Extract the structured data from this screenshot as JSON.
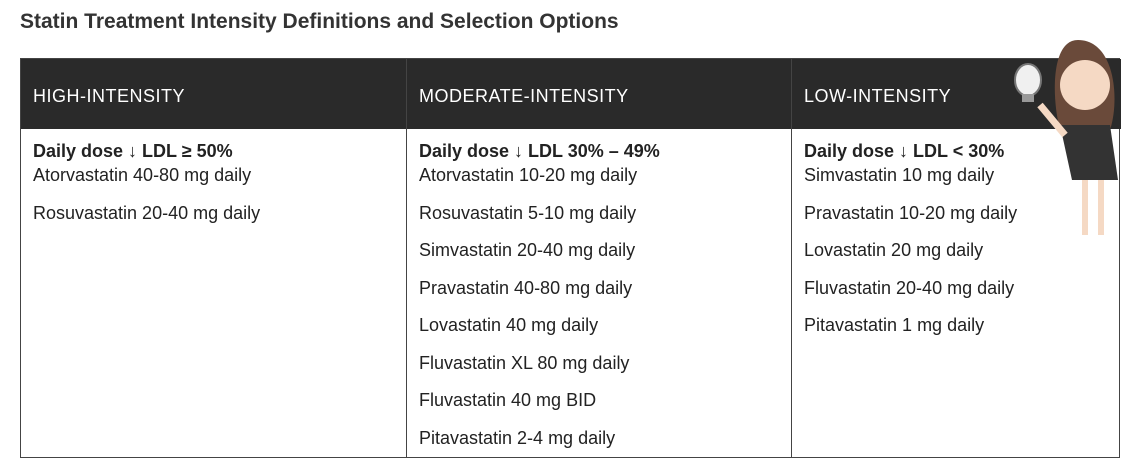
{
  "title": "Statin Treatment Intensity Definitions and Selection Options",
  "table": {
    "columns": [
      {
        "header": "HIGH-INTENSITY",
        "subheader": "Daily dose ↓ LDL ≥ 50%",
        "items": [
          "Atorvastatin 40-80 mg daily",
          "Rosuvastatin 20-40 mg daily"
        ]
      },
      {
        "header": "MODERATE-INTENSITY",
        "subheader": "Daily dose ↓ LDL 30% – 49%",
        "items": [
          "Atorvastatin 10-20 mg daily",
          "Rosuvastatin 5-10 mg daily",
          "Simvastatin 20-40 mg daily",
          "Pravastatin 40-80 mg daily",
          "Lovastatin 40 mg daily",
          "Fluvastatin XL 80 mg daily",
          "Fluvastatin 40 mg BID",
          "Pitavastatin 2-4 mg daily"
        ]
      },
      {
        "header": "LOW-INTENSITY",
        "subheader": "Daily dose ↓ LDL < 30%",
        "items": [
          "Simvastatin 10 mg daily",
          "Pravastatin 10-20 mg daily",
          "Lovastatin 20 mg daily",
          "Fluvastatin 20-40 mg daily",
          "Pitavastatin 1 mg daily"
        ]
      }
    ]
  }
}
